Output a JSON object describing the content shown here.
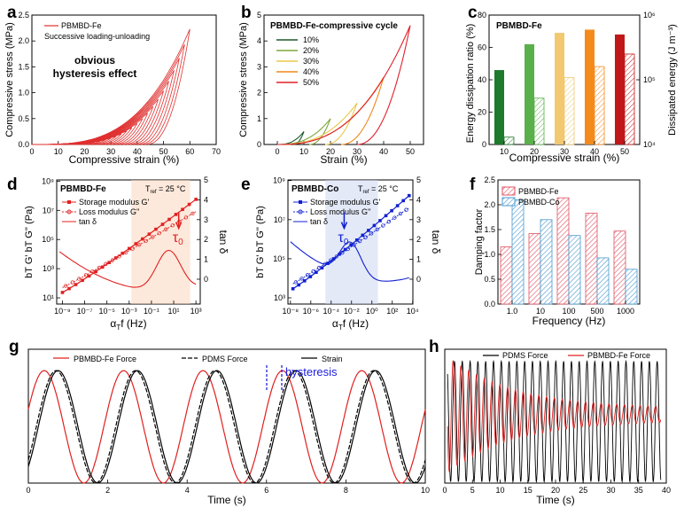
{
  "chart_data": [
    {
      "panel": "a",
      "type": "line",
      "xlabel": "Compressive strain (%)",
      "ylabel": "Compressive stress (MPa)",
      "xlim": [
        0,
        70
      ],
      "ylim": [
        0,
        2.5
      ],
      "xticks": [
        "0",
        "10",
        "20",
        "30",
        "40",
        "50",
        "60",
        "70"
      ],
      "yticks": [
        "0.0",
        "0.5",
        "1.0",
        "1.5",
        "2.0",
        "2.5"
      ],
      "legend": [
        "PBMBD-Fe",
        "Successive loading-unloading"
      ],
      "annotation": "obvious hysteresis effect",
      "series_color": "#e03030",
      "max_strains": [
        18,
        20,
        22,
        24,
        26,
        28,
        30,
        32,
        34,
        36,
        38,
        40,
        42,
        44,
        46,
        48,
        50,
        52,
        54,
        56,
        58,
        60
      ],
      "peak_stress_at_60": 2.23
    },
    {
      "panel": "b",
      "type": "line",
      "title": "PBMBD-Fe-compressive cycle",
      "xlabel": "Strain (%)",
      "ylabel": "Compressive stress (MPa)",
      "xlim": [
        -5,
        55
      ],
      "ylim": [
        0,
        5
      ],
      "xticks": [
        "0",
        "10",
        "20",
        "30",
        "40",
        "50"
      ],
      "yticks": [
        "0",
        "1",
        "2",
        "3",
        "4",
        "5"
      ],
      "series": [
        {
          "name": "10%",
          "max_strain": 10,
          "peak": 0.5,
          "color": "#1e5a2c"
        },
        {
          "name": "20%",
          "max_strain": 20,
          "peak": 1.0,
          "color": "#7ea83a"
        },
        {
          "name": "30%",
          "max_strain": 30,
          "peak": 1.6,
          "color": "#e8c84a"
        },
        {
          "name": "40%",
          "max_strain": 40,
          "peak": 2.6,
          "color": "#f08a1c"
        },
        {
          "name": "50%",
          "max_strain": 50,
          "peak": 4.6,
          "color": "#e0202a"
        }
      ]
    },
    {
      "panel": "c",
      "type": "bar",
      "title": "PBMBD-Fe",
      "xlabel": "Compressive strain (%)",
      "ylabel": "Energy dissipation ratio (%)",
      "ylabel_right": "Dissipated energy (J m⁻³)",
      "categories": [
        "10",
        "20",
        "30",
        "40",
        "50"
      ],
      "ylim": [
        0,
        80
      ],
      "yticks": [
        "0",
        "20",
        "40",
        "60",
        "80"
      ],
      "yticks_right": [
        "10⁴",
        "10⁵",
        "10⁶"
      ],
      "ratio": [
        46,
        62,
        69,
        71,
        68
      ],
      "dissipated_energy": [
        13000,
        52000,
        108000,
        160000,
        250000
      ],
      "colors": [
        "#1e7a2c",
        "#5ab04a",
        "#f2c870",
        "#f58a1c",
        "#c01818"
      ]
    },
    {
      "panel": "d",
      "type": "line",
      "title": "PBMBD-Fe",
      "tref": "T",
      "tref_sub": "ref",
      "tref_val": " = 25 °C",
      "xlabel_pre": "α",
      "xlabel_sub": "T",
      "xlabel_post": "f (Hz)",
      "ylabel": "b",
      "ylabel_right": "tan δ",
      "xticks": [
        "10⁻⁹",
        "10⁻⁷",
        "10⁻⁵",
        "10⁻³",
        "10⁻¹",
        "10¹",
        "10³"
      ],
      "yticks": [
        "10¹",
        "10³",
        "10⁵",
        "10⁷",
        "10⁹"
      ],
      "yticks_right": [
        "0",
        "1",
        "2",
        "3",
        "4",
        "5"
      ],
      "legend": [
        "Storage modulus G'",
        "Loss modulus G''",
        "tan δ"
      ],
      "tau": "τ",
      "tau_sub": "0",
      "color": "#e02020"
    },
    {
      "panel": "e",
      "type": "line",
      "title": "PBMBD-Co",
      "tref": "T",
      "tref_sub": "ref",
      "tref_val": " = 25 °C",
      "xlabel_pre": "α",
      "xlabel_sub": "T",
      "xlabel_post": "f (Hz)",
      "ylabel_right": "tan δ",
      "xticks": [
        "10⁻⁸",
        "10⁻⁶",
        "10⁻⁴",
        "10⁻²",
        "10⁰",
        "10²",
        "10⁴"
      ],
      "yticks": [
        "10³",
        "10⁵",
        "10⁷",
        "10⁹"
      ],
      "yticks_right": [
        "0",
        "1",
        "2",
        "3",
        "4",
        "5"
      ],
      "legend": [
        "Storage modulus G'",
        "Loss modulus G''",
        "tan δ"
      ],
      "tau": "τ",
      "tau_sub": "0",
      "color": "#1020d0"
    },
    {
      "panel": "f",
      "type": "bar",
      "xlabel": "Frequency (Hz)",
      "ylabel": "Damping factor",
      "categories": [
        "1.0",
        "10",
        "100",
        "500",
        "1000"
      ],
      "ylim": [
        0,
        2.5
      ],
      "yticks": [
        "0.0",
        "0.5",
        "1.0",
        "1.5",
        "2.0",
        "2.5"
      ],
      "series": [
        {
          "name": "PBMBD-Fe",
          "values": [
            1.15,
            1.42,
            2.14,
            1.83,
            1.47
          ],
          "color": "#e05060"
        },
        {
          "name": "PBMBD-Co",
          "values": [
            2.1,
            1.7,
            1.38,
            0.93,
            0.7
          ],
          "color": "#4a9ad0"
        }
      ]
    },
    {
      "panel": "g",
      "type": "line",
      "xlabel": "Time (s)",
      "xlim": [
        0,
        10
      ],
      "xticks": [
        "0",
        "2",
        "4",
        "6",
        "8",
        "10"
      ],
      "legend": [
        "PBMBD-Fe Force",
        "PDMS Force",
        "Strain"
      ],
      "annotation": "hysteresis",
      "period_s": 2.0,
      "series": [
        {
          "name": "PBMBD-Fe Force",
          "color": "#e02020",
          "phase_lead_s": 0.35
        },
        {
          "name": "PDMS Force",
          "color": "#000000",
          "phase_lead_s": 0.05
        },
        {
          "name": "Strain",
          "color": "#000000",
          "phase_lead_s": 0.0
        }
      ]
    },
    {
      "panel": "h",
      "type": "line",
      "xlabel": "Time (s)",
      "xlim": [
        0,
        40
      ],
      "xticks": [
        "0",
        "5",
        "10",
        "15",
        "20",
        "25",
        "30",
        "35",
        "40"
      ],
      "legend": [
        "PDMS Force",
        "PBMBD-Fe Force"
      ],
      "series": [
        {
          "name": "PDMS Force",
          "color": "#000000",
          "cycles": 27
        },
        {
          "name": "PBMBD-Fe Force",
          "color": "#e02020",
          "cycles": 27,
          "decays": true
        }
      ]
    }
  ]
}
